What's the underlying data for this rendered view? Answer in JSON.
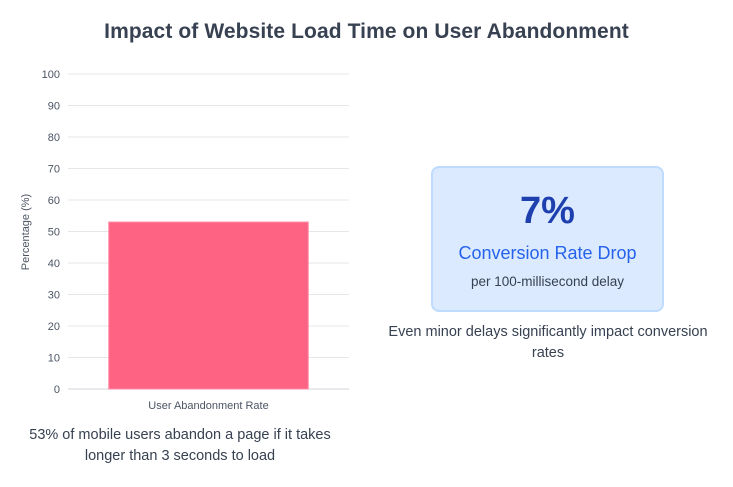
{
  "title": "Impact of Website Load Time on User Abandonment",
  "chart_data": {
    "type": "bar",
    "categories": [
      "User Abandonment Rate"
    ],
    "values": [
      53
    ],
    "ylabel": "Percentage (%)",
    "xlabel": "",
    "ylim": [
      0,
      100
    ],
    "yticks": [
      0,
      10,
      20,
      30,
      40,
      50,
      60,
      70,
      80,
      90,
      100
    ],
    "grid": true,
    "bar_color": "#ff6384"
  },
  "chart_caption": "53% of mobile users abandon a page if it takes longer than 3 seconds to load",
  "stat": {
    "value": "7%",
    "label": "Conversion Rate Drop",
    "sub": "per 100-millisecond delay",
    "caption": "Even minor delays significantly impact conversion rates"
  },
  "colors": {
    "accent_dark": "#1e40af",
    "accent": "#2563eb",
    "card_bg": "#dbeafe"
  }
}
